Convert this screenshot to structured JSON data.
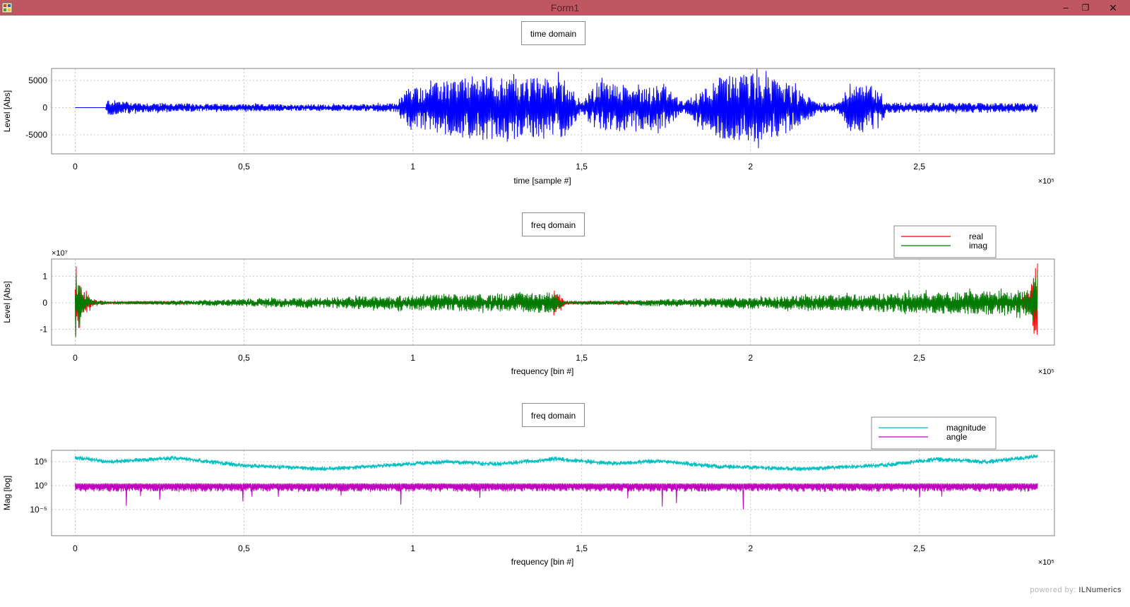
{
  "window": {
    "title": "Form1",
    "minimize_glyph": "–",
    "maximize_glyph": "❐",
    "close_glyph": "✕",
    "titlebar_color": "#bf5762"
  },
  "footer": {
    "powered_label": "powered by:",
    "brand": "ILNumerics"
  },
  "chart_data": [
    {
      "type": "line",
      "title": "time domain",
      "xlabel": "time [sample #]",
      "ylabel": "Level [Abs]",
      "x_exponent_label": "×10⁵",
      "xlim": [
        -0.07,
        2.9
      ],
      "ylim": [
        -8500,
        7200
      ],
      "x_ticks": [
        0,
        0.5,
        1,
        1.5,
        2,
        2.5
      ],
      "x_tick_labels": [
        "0",
        "0,5",
        "1",
        "1,5",
        "2",
        "2,5"
      ],
      "y_ticks": [
        5000,
        0,
        -5000
      ],
      "y_tick_labels": [
        "5000",
        "0",
        "-5000"
      ],
      "grid": true,
      "legend": null,
      "series": [
        {
          "color": "#0000ff",
          "x_range": [
            0,
            2.85
          ],
          "envelope": [
            [
              0,
              0
            ],
            [
              0.09,
              0
            ],
            [
              0.095,
              1500
            ],
            [
              0.2,
              900
            ],
            [
              0.4,
              700
            ],
            [
              0.8,
              600
            ],
            [
              0.95,
              800
            ],
            [
              0.98,
              3500
            ],
            [
              1.1,
              5000
            ],
            [
              1.2,
              6000
            ],
            [
              1.3,
              5500
            ],
            [
              1.45,
              5500
            ],
            [
              1.5,
              1000
            ],
            [
              1.55,
              5000
            ],
            [
              1.65,
              4000
            ],
            [
              1.75,
              4000
            ],
            [
              1.8,
              800
            ],
            [
              1.9,
              5500
            ],
            [
              2.0,
              6500
            ],
            [
              2.1,
              5000
            ],
            [
              2.2,
              1000
            ],
            [
              2.26,
              800
            ],
            [
              2.29,
              4500
            ],
            [
              2.38,
              4000
            ],
            [
              2.4,
              1000
            ],
            [
              2.6,
              900
            ],
            [
              2.85,
              800
            ]
          ]
        }
      ]
    },
    {
      "type": "line",
      "title": "freq domain",
      "xlabel": "frequency  [bin #]",
      "ylabel": "Level [Abs]",
      "x_exponent_label": "×10⁵",
      "y_exponent_label": "×10⁷",
      "xlim": [
        -0.07,
        2.9
      ],
      "ylim": [
        -1.6,
        1.65
      ],
      "x_ticks": [
        0,
        0.5,
        1,
        1.5,
        2,
        2.5
      ],
      "x_tick_labels": [
        "0",
        "0,5",
        "1",
        "1,5",
        "2",
        "2,5"
      ],
      "y_ticks": [
        1,
        0,
        -1
      ],
      "y_tick_labels": [
        "1",
        "0",
        "-1"
      ],
      "grid": true,
      "legend": "top-right",
      "series": [
        {
          "name": "real",
          "color": "#ff0000",
          "x_range": [
            0,
            2.85
          ],
          "envelope": [
            [
              0,
              1.5
            ],
            [
              0.01,
              1.2
            ],
            [
              0.02,
              0.6
            ],
            [
              0.05,
              0.15
            ],
            [
              0.1,
              0.05
            ],
            [
              0.3,
              0.07
            ],
            [
              0.35,
              0.02
            ],
            [
              1.1,
              0.05
            ],
            [
              1.4,
              0.12
            ],
            [
              1.42,
              0.55
            ],
            [
              1.45,
              0.08
            ],
            [
              1.7,
              0.05
            ],
            [
              2.5,
              0.05
            ],
            [
              2.8,
              0.15
            ],
            [
              2.83,
              0.6
            ],
            [
              2.84,
              1.2
            ],
            [
              2.85,
              1.5
            ]
          ]
        },
        {
          "name": "imag",
          "color": "#007a00",
          "x_range": [
            0,
            2.85
          ],
          "envelope": [
            [
              0,
              1.4
            ],
            [
              0.01,
              1.0
            ],
            [
              0.02,
              0.5
            ],
            [
              0.05,
              0.1
            ],
            [
              0.1,
              0.03
            ],
            [
              1.42,
              0.4
            ],
            [
              1.45,
              0.04
            ],
            [
              2.83,
              0.5
            ],
            [
              2.84,
              1.0
            ],
            [
              2.85,
              1.4
            ]
          ]
        }
      ]
    },
    {
      "type": "line",
      "title": "freq domain",
      "xlabel": "frequency  [bin #]",
      "ylabel": "Mag [log]",
      "x_exponent_label": "×10⁵",
      "y_scale": "log",
      "xlim": [
        -0.07,
        2.9
      ],
      "ylim": [
        -10.5,
        7.4
      ],
      "x_ticks": [
        0,
        0.5,
        1,
        1.5,
        2,
        2.5
      ],
      "x_tick_labels": [
        "0",
        "0,5",
        "1",
        "1,5",
        "2",
        "2,5"
      ],
      "y_ticks": [
        5,
        0,
        -5
      ],
      "y_tick_labels": [
        "10⁵",
        "10⁰",
        "10⁻⁵"
      ],
      "grid": true,
      "legend": "top-right",
      "series": [
        {
          "name": "magnitude",
          "color": "#00bfbf",
          "x_range": [
            0,
            2.85
          ],
          "center_log10": [
            [
              0,
              5.9
            ],
            [
              0.1,
              5.0
            ],
            [
              0.3,
              5.8
            ],
            [
              0.5,
              4.2
            ],
            [
              0.75,
              3.5
            ],
            [
              1.1,
              5.0
            ],
            [
              1.25,
              4.5
            ],
            [
              1.42,
              5.6
            ],
            [
              1.6,
              4.6
            ],
            [
              1.73,
              5.2
            ],
            [
              1.9,
              4.0
            ],
            [
              2.15,
              3.5
            ],
            [
              2.4,
              4.3
            ],
            [
              2.55,
              5.5
            ],
            [
              2.7,
              5.0
            ],
            [
              2.85,
              6.1
            ]
          ],
          "spread_log10": 1.0
        },
        {
          "name": "angle",
          "color": "#bf00bf",
          "x_range": [
            0,
            2.85
          ],
          "center_log10": [
            [
              0,
              0
            ],
            [
              2.85,
              0
            ]
          ],
          "upper_log10": 0.5,
          "lower_log10": -1.0
        }
      ]
    }
  ]
}
